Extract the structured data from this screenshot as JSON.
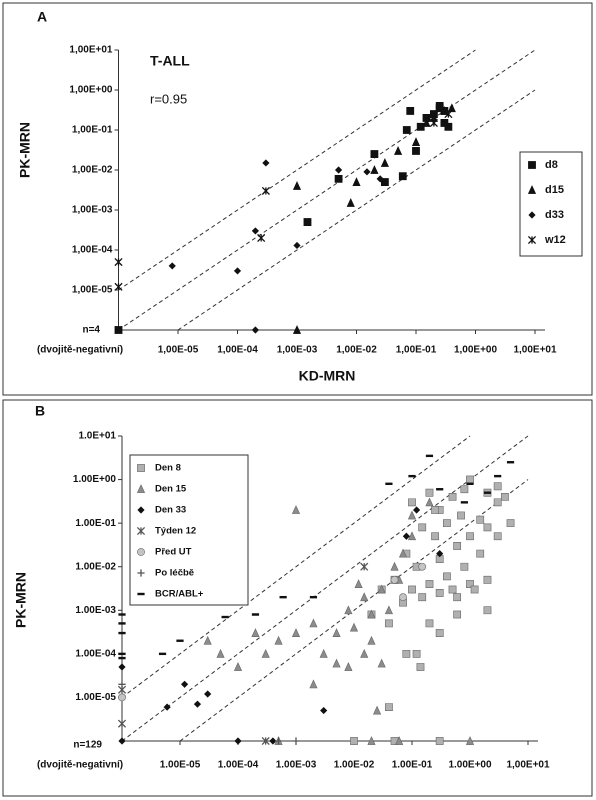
{
  "chart_data": [
    {
      "type": "scatter",
      "panel_label": "A",
      "title": "T-ALL",
      "annotation": "r=0.95",
      "x_label": "KD-MRN",
      "y_label": "PK-MRN",
      "double_negative_label": "n=4",
      "double_negative_note": "(dvojitě-negativní)",
      "log_scale": true,
      "legend": "right",
      "xlim": [
        1e-06,
        10
      ],
      "ylim": [
        1e-06,
        10
      ],
      "xticks": [
        {
          "value": 1e-05,
          "label": "1,00E-05"
        },
        {
          "value": 0.0001,
          "label": "1,00E-04"
        },
        {
          "value": 0.001,
          "label": "1,00E-03"
        },
        {
          "value": 0.01,
          "label": "1,00E-02"
        },
        {
          "value": 0.1,
          "label": "1,00E-01"
        },
        {
          "value": 1,
          "label": "1,00E+00"
        },
        {
          "value": 10,
          "label": "1,00E+01"
        }
      ],
      "yticks": [
        {
          "value": 1e-05,
          "label": "1,00E-05"
        },
        {
          "value": 0.0001,
          "label": "1,00E-04"
        },
        {
          "value": 0.001,
          "label": "1,00E-03"
        },
        {
          "value": 0.01,
          "label": "1,00E-02"
        },
        {
          "value": 0.1,
          "label": "1,00E-01"
        },
        {
          "value": 1,
          "label": "1,00E+00"
        },
        {
          "value": 10,
          "label": "1,00E+01"
        }
      ],
      "series": [
        {
          "name": "d8",
          "marker": "square",
          "color": "#111111",
          "x": [
            0.3,
            0.2,
            0.15,
            0.08,
            0.25,
            0.3,
            0.35,
            0.1,
            0.12,
            0.07,
            0.25,
            0.06,
            0.03,
            0.02,
            0.005,
            0.0015,
            null
          ],
          "values": [
            0.3,
            0.25,
            0.2,
            0.3,
            0.4,
            0.15,
            0.12,
            0.03,
            0.12,
            0.1,
            0.35,
            0.007,
            0.005,
            0.025,
            0.006,
            0.0005,
            null
          ]
        },
        {
          "name": "d15",
          "marker": "triangle",
          "color": "#111111",
          "x": [
            0.2,
            0.15,
            0.1,
            0.05,
            0.03,
            0.02,
            0.01,
            0.008,
            0.001,
            0.3,
            0.4,
            0.001
          ],
          "values": [
            0.2,
            0.15,
            0.05,
            0.03,
            0.015,
            0.01,
            0.005,
            0.0015,
            0.004,
            0.3,
            0.35,
            null
          ]
        },
        {
          "name": "d33",
          "marker": "diamond",
          "color": "#111111",
          "x": [
            0.005,
            0.015,
            0.025,
            0.0003,
            0.0002,
            0.001,
            8e-06,
            0.0001,
            0.0002
          ],
          "values": [
            0.01,
            0.009,
            0.006,
            0.015,
            0.0003,
            0.00013,
            4e-05,
            3e-05,
            null
          ]
        },
        {
          "name": "w12",
          "marker": "asterisk",
          "color": "#111111",
          "x": [
            0.0003,
            0.00025,
            0.2,
            0.35,
            null,
            null,
            null
          ],
          "values": [
            0.003,
            0.0002,
            0.15,
            0.25,
            5e-05,
            1.2e-05,
            null
          ]
        }
      ]
    },
    {
      "type": "scatter",
      "panel_label": "B",
      "x_label": null,
      "y_label": "PK-MRN",
      "double_negative_label": "n=129",
      "double_negative_note": "(dvojitě-negativní)",
      "log_scale": true,
      "legend": "top-left",
      "xlim": [
        1e-06,
        10
      ],
      "ylim": [
        1e-06,
        10
      ],
      "xticks": [
        {
          "value": 1e-05,
          "label": "1.00E-05"
        },
        {
          "value": 0.0001,
          "label": "1.00E-04"
        },
        {
          "value": 0.001,
          "label": "1.00E-03"
        },
        {
          "value": 0.01,
          "label": "1.00E-02"
        },
        {
          "value": 0.1,
          "label": "1.00E-01"
        },
        {
          "value": 1,
          "label": "1.00E+00"
        },
        {
          "value": 10,
          "label": "1,00E+01"
        }
      ],
      "yticks": [
        {
          "value": 1e-05,
          "label": "1.00E-05"
        },
        {
          "value": 0.0001,
          "label": "1.00E-04"
        },
        {
          "value": 0.001,
          "label": "1.00E-03"
        },
        {
          "value": 0.01,
          "label": "1.00E-02"
        },
        {
          "value": 0.1,
          "label": "1.00E-01"
        },
        {
          "value": 1,
          "label": "1.00E+00"
        },
        {
          "value": 10,
          "label": "1.0E+01"
        }
      ],
      "series": [
        {
          "name": "Den 8",
          "marker": "square",
          "color": "#b0b0b0",
          "x": [
            0.1,
            0.2,
            0.3,
            0.5,
            1,
            2,
            3,
            0.15,
            0.4,
            0.7,
            1.5,
            0.25,
            0.08,
            0.12,
            0.3,
            0.6,
            1,
            2,
            0.05,
            0.1,
            0.2,
            0.4,
            0.8,
            1.5,
            3,
            5,
            0.03,
            0.07,
            0.15,
            0.3,
            0.5,
            1,
            2,
            0.02,
            0.04,
            0.12,
            0.14,
            0.3,
            0.6,
            2,
            0.04,
            0.25,
            0.8,
            4,
            3,
            0.6,
            1.2,
            0.2,
            0.08,
            0.01,
            0.05,
            0.3
          ],
          "values": [
            0.3,
            0.5,
            0.2,
            0.4,
            1,
            0.5,
            0.3,
            0.08,
            0.1,
            0.15,
            0.12,
            0.05,
            0.02,
            0.01,
            0.015,
            0.03,
            0.05,
            0.08,
            0.005,
            0.003,
            0.004,
            0.006,
            0.01,
            0.02,
            0.05,
            0.1,
            0.003,
            0.0015,
            0.002,
            0.0025,
            0.003,
            0.004,
            0.005,
            0.0008,
            0.0005,
            0.0001,
            5e-05,
            0.0003,
            0.0008,
            0.001,
            6e-06,
            0.2,
            0.6,
            0.4,
            0.7,
            0.002,
            0.003,
            0.0005,
            0.0001,
            null,
            null,
            null
          ]
        },
        {
          "name": "Den 15",
          "marker": "triangle",
          "color": "#8c8c8c",
          "x": [
            0.001,
            3e-05,
            5e-05,
            0.0001,
            0.0002,
            0.0003,
            0.0005,
            0.001,
            0.002,
            0.003,
            0.005,
            0.008,
            0.01,
            0.015,
            0.02,
            0.03,
            0.04,
            0.05,
            0.03,
            0.1,
            0.07,
            0.02,
            0.005,
            0.002,
            0.008,
            0.015,
            0.06,
            0.2,
            0.1,
            0.012,
            0.025,
            0.02,
            0.06,
            1,
            0.0005
          ],
          "values": [
            0.2,
            0.0002,
            0.0001,
            5e-05,
            0.0003,
            0.0001,
            0.0002,
            0.0003,
            0.0005,
            0.0001,
            0.0003,
            0.001,
            0.0004,
            0.002,
            0.0008,
            0.003,
            0.001,
            0.01,
            6e-05,
            0.05,
            0.02,
            0.0002,
            6e-05,
            2e-05,
            5e-05,
            0.0001,
            0.005,
            0.3,
            0.15,
            0.004,
            5e-06,
            null,
            null,
            null,
            null
          ]
        },
        {
          "name": "Den 33",
          "marker": "diamond",
          "color": "#111111",
          "x": [
            6e-06,
            1.2e-05,
            2e-05,
            3e-05,
            0.003,
            0.08,
            0.12,
            0.3,
            null,
            null,
            0.0001,
            0.0004
          ],
          "values": [
            6e-06,
            2e-05,
            7e-06,
            1.2e-05,
            5e-06,
            0.05,
            0.2,
            0.02,
            5e-05,
            null,
            null,
            null
          ]
        },
        {
          "name": "Týden 12",
          "marker": "asterisk",
          "color": "#555555",
          "x": [
            null,
            null,
            0.015,
            0.0003
          ],
          "values": [
            2.5e-06,
            1.5e-05,
            0.01,
            null
          ]
        },
        {
          "name": "Před UT",
          "marker": "circle",
          "color": "#c4c4c4",
          "x": [
            0.05,
            0.15,
            0.07,
            null
          ],
          "values": [
            0.005,
            0.01,
            0.002,
            1e-05
          ]
        },
        {
          "name": "Po léčbě",
          "marker": "plus",
          "color": "#555555",
          "x": [
            null,
            0.0005,
            0.001
          ],
          "values": [
            2e-05,
            null,
            null
          ]
        },
        {
          "name": "BCR/ABL+",
          "marker": "dash",
          "color": "#111111",
          "x": [
            null,
            null,
            null,
            null,
            null,
            5e-06,
            1e-05,
            6e-05,
            0.0002,
            0.0006,
            0.002,
            0.1,
            0.2,
            0.3,
            1,
            2,
            5,
            0.8,
            0.04,
            3
          ],
          "values": [
            0.0008,
            0.0005,
            0.0003,
            0.0001,
            8e-05,
            0.0001,
            0.0002,
            0.0007,
            0.0008,
            0.002,
            0.002,
            1.2,
            3.5,
            0.6,
            0.8,
            0.5,
            2.5,
            0.3,
            0.8,
            1.2
          ]
        }
      ]
    }
  ]
}
